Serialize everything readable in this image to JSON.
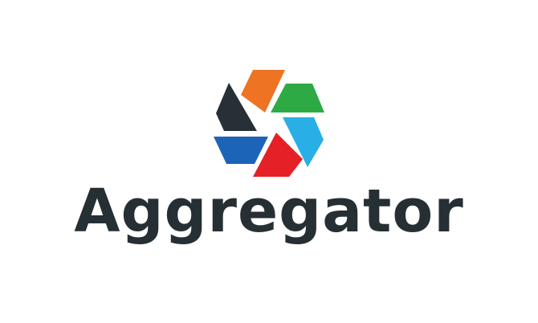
{
  "brand": {
    "name": "Aggregator",
    "text_color": "#262f33"
  },
  "logo": {
    "icon": "aperture-icon",
    "segment_colors": {
      "orange": "#ee7322",
      "green": "#2eaa45",
      "light_blue": "#29aee6",
      "red": "#e52127",
      "blue": "#1c64b8",
      "dark": "#263036"
    }
  }
}
